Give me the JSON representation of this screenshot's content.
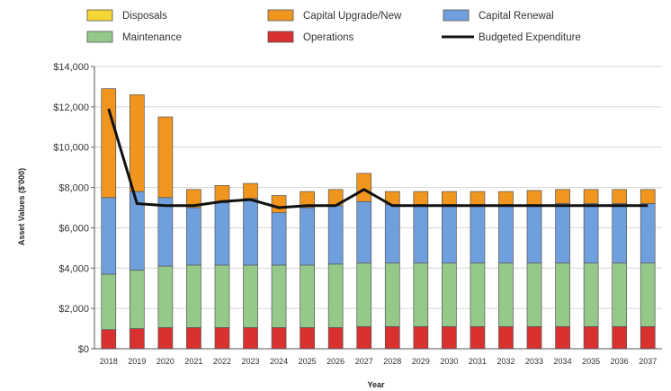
{
  "chart_data": {
    "type": "bar",
    "stacked": true,
    "xlabel": "Year",
    "ylabel": "Asset Values ($'000)",
    "ylim": [
      0,
      14000
    ],
    "ytick_step": 2000,
    "ytick_labels": [
      "$0",
      "$2,000",
      "$4,000",
      "$6,000",
      "$8,000",
      "$10,000",
      "$12,000",
      "$14,000"
    ],
    "grid": true,
    "legend_position": "top",
    "categories": [
      "2018",
      "2019",
      "2020",
      "2021",
      "2022",
      "2023",
      "2024",
      "2025",
      "2026",
      "2027",
      "2028",
      "2029",
      "2030",
      "2031",
      "2032",
      "2033",
      "2034",
      "2035",
      "2036",
      "2037"
    ],
    "series": [
      {
        "name": "Operations",
        "color": "#d93030",
        "values": [
          950,
          1000,
          1050,
          1050,
          1050,
          1050,
          1050,
          1050,
          1050,
          1100,
          1100,
          1100,
          1100,
          1100,
          1100,
          1100,
          1100,
          1100,
          1100,
          1100
        ]
      },
      {
        "name": "Maintenance",
        "color": "#94c98a",
        "values": [
          2750,
          2900,
          3050,
          3100,
          3100,
          3100,
          3100,
          3100,
          3150,
          3150,
          3150,
          3150,
          3150,
          3150,
          3150,
          3150,
          3150,
          3150,
          3150,
          3150
        ]
      },
      {
        "name": "Capital Renewal",
        "color": "#6f9fdd",
        "values": [
          3800,
          3900,
          3400,
          2850,
          3100,
          3300,
          2600,
          2850,
          2900,
          3050,
          2900,
          2900,
          2900,
          2900,
          2900,
          2900,
          2950,
          2950,
          2950,
          2950
        ]
      },
      {
        "name": "Capital Upgrade/New",
        "color": "#f0951e",
        "values": [
          5400,
          4800,
          4000,
          900,
          850,
          750,
          850,
          800,
          800,
          1400,
          650,
          650,
          650,
          650,
          650,
          700,
          700,
          700,
          700,
          700
        ]
      },
      {
        "name": "Disposals",
        "color": "#f5d635",
        "values": [
          0,
          0,
          0,
          0,
          0,
          0,
          0,
          0,
          0,
          0,
          0,
          0,
          0,
          0,
          0,
          0,
          0,
          0,
          0,
          0
        ]
      }
    ],
    "line": {
      "name": "Budgeted Expenditure",
      "color": "#111111",
      "values": [
        11900,
        7200,
        7100,
        7100,
        7300,
        7400,
        7000,
        7100,
        7100,
        7900,
        7100,
        7100,
        7100,
        7100,
        7100,
        7100,
        7100,
        7100,
        7100,
        7100
      ]
    },
    "legend": [
      {
        "label": "Disposals",
        "color": "#f5d635",
        "kind": "box"
      },
      {
        "label": "Capital Upgrade/New",
        "color": "#f0951e",
        "kind": "box"
      },
      {
        "label": "Capital Renewal",
        "color": "#6f9fdd",
        "kind": "box"
      },
      {
        "label": "Maintenance",
        "color": "#94c98a",
        "kind": "box"
      },
      {
        "label": "Operations",
        "color": "#d93030",
        "kind": "box"
      },
      {
        "label": "Budgeted Expenditure",
        "color": "#111111",
        "kind": "line"
      }
    ]
  }
}
